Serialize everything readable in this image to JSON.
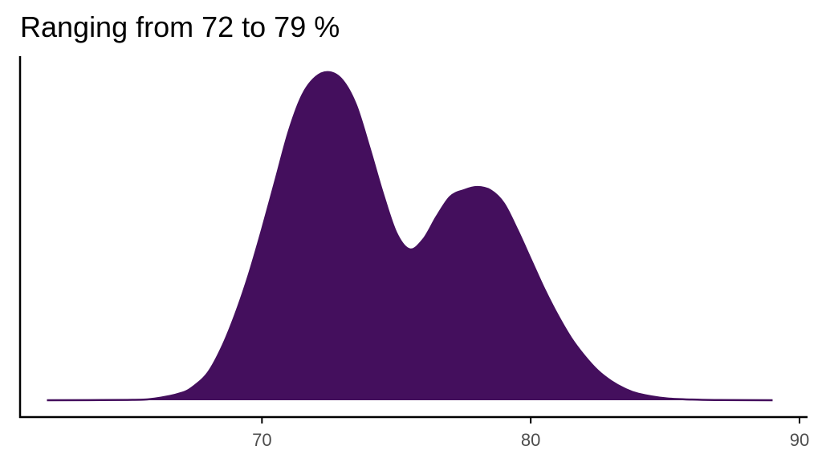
{
  "chart_data": {
    "type": "area",
    "title": "Ranging from 72 to 79 %",
    "xlabel": "",
    "ylabel": "",
    "xlim": [
      61,
      90.3
    ],
    "ylim": [
      0,
      1
    ],
    "x_ticks": [
      70,
      80,
      90
    ],
    "grid": false,
    "legend": "none",
    "fill_color": "#440f5d",
    "series": [
      {
        "x": [
          62,
          65,
          66,
          67,
          67.5,
          68,
          68.5,
          69,
          69.5,
          70,
          70.5,
          71,
          71.5,
          72,
          72.5,
          73,
          73.5,
          74,
          74.5,
          75,
          75.5,
          76,
          76.5,
          77,
          77.5,
          78,
          78.5,
          79,
          79.5,
          80,
          80.5,
          81,
          81.5,
          82,
          82.5,
          83,
          83.5,
          84,
          85,
          86,
          87,
          89
        ],
        "y": [
          0,
          0.001,
          0.005,
          0.022,
          0.045,
          0.085,
          0.16,
          0.26,
          0.38,
          0.52,
          0.67,
          0.82,
          0.93,
          0.985,
          1.0,
          0.975,
          0.9,
          0.77,
          0.63,
          0.51,
          0.46,
          0.49,
          0.56,
          0.62,
          0.64,
          0.65,
          0.64,
          0.6,
          0.52,
          0.43,
          0.34,
          0.26,
          0.19,
          0.135,
          0.09,
          0.058,
          0.035,
          0.02,
          0.006,
          0.002,
          0.0005,
          0
        ]
      }
    ]
  }
}
